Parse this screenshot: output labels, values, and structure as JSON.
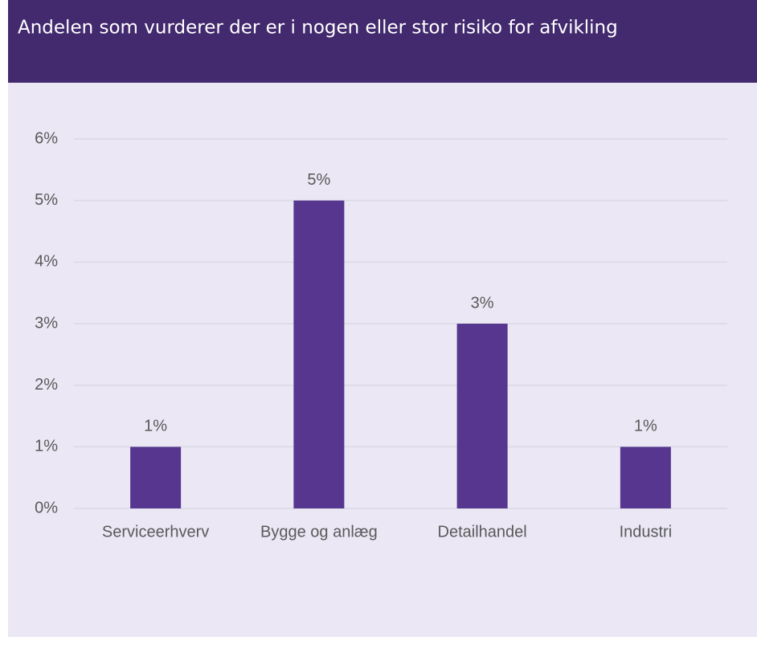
{
  "chart_data": {
    "type": "bar",
    "title": "Andelen som vurderer der er i nogen eller stor risiko for afvikling",
    "categories": [
      "Serviceerhverv",
      "Bygge og anlæg",
      "Detailhandel",
      "Industri"
    ],
    "values": [
      1,
      5,
      3,
      1
    ],
    "value_labels": [
      "1%",
      "5%",
      "3%",
      "1%"
    ],
    "color": "#56368f",
    "ylim": [
      0,
      6
    ],
    "yticks": [
      {
        "value": 0,
        "label": "0%"
      },
      {
        "value": 1,
        "label": "1%"
      },
      {
        "value": 2,
        "label": "2%"
      },
      {
        "value": 3,
        "label": "3%"
      },
      {
        "value": 4,
        "label": "4%"
      },
      {
        "value": 5,
        "label": "5%"
      },
      {
        "value": 6,
        "label": "6%"
      }
    ],
    "grid": true
  }
}
